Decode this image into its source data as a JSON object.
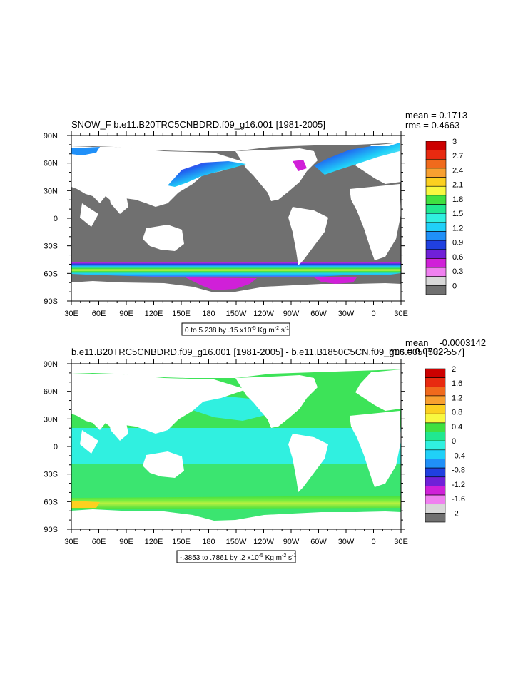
{
  "chart_data": [
    {
      "type": "heatmap",
      "title": "SNOW_F b.e11.B20TRC5CNBDRD.f09_g16.001 [1981-2005]",
      "stats": {
        "mean": "mean = 0.1713",
        "rms": "rms = 0.4663"
      },
      "x_ticks": [
        "30E",
        "60E",
        "90E",
        "120E",
        "150E",
        "180",
        "150W",
        "120W",
        "90W",
        "60W",
        "30W",
        "0",
        "30E"
      ],
      "y_ticks": [
        "90N",
        "60N",
        "30N",
        "0",
        "30S",
        "60S",
        "90S"
      ],
      "contour_info": {
        "prefix": "0 to 5.238 by .15 x10",
        "exp": "-5",
        "mid": " Kg m",
        "exp2": "-2",
        "suffix": " s",
        "exp3": "-1"
      },
      "colorbar": {
        "labels": [
          "3",
          "2.7",
          "2.4",
          "2.1",
          "1.8",
          "1.5",
          "1.2",
          "0.9",
          "0.6",
          "0.3",
          "0"
        ],
        "colors": [
          "#cc0000",
          "#e82a10",
          "#f06a1c",
          "#f8a030",
          "#fcd020",
          "#f8f840",
          "#40e040",
          "#20e890",
          "#30f0e0",
          "#20d0f8",
          "#2090f8",
          "#2040e0",
          "#7020d8",
          "#d020d8",
          "#f080f0",
          "#d8d8d8",
          "#707070"
        ]
      }
    },
    {
      "type": "heatmap",
      "title": "b.e11.B20TRC5CNBDRD.f09_g16.001 [1981-2005] - b.e11.B1850C5CN.f09_g16.005 [532-557]",
      "stats": {
        "mean": "mean = -0.0003142",
        "rms": "rms = 0.07022"
      },
      "x_ticks": [
        "30E",
        "60E",
        "90E",
        "120E",
        "150E",
        "180",
        "150W",
        "120W",
        "90W",
        "60W",
        "30W",
        "0",
        "30E"
      ],
      "y_ticks": [
        "90N",
        "60N",
        "30N",
        "0",
        "30S",
        "60S",
        "90S"
      ],
      "contour_info": {
        "prefix": "-.3853 to .7861 by .2 x10",
        "exp": "-5",
        "mid": " Kg m",
        "exp2": "-2",
        "suffix": " s",
        "exp3": "-1"
      },
      "colorbar": {
        "labels": [
          "2",
          "1.6",
          "1.2",
          "0.8",
          "0.4",
          "0",
          "-0.4",
          "-0.8",
          "-1.2",
          "-1.6",
          "-2"
        ],
        "colors": [
          "#cc0000",
          "#e82a10",
          "#f06a1c",
          "#f8a030",
          "#fcd020",
          "#f8f840",
          "#40e040",
          "#20e890",
          "#30f0e0",
          "#20d0f8",
          "#2090f8",
          "#2040e0",
          "#7020d8",
          "#d020d8",
          "#f080f0",
          "#d8d8d8",
          "#707070"
        ]
      }
    }
  ]
}
